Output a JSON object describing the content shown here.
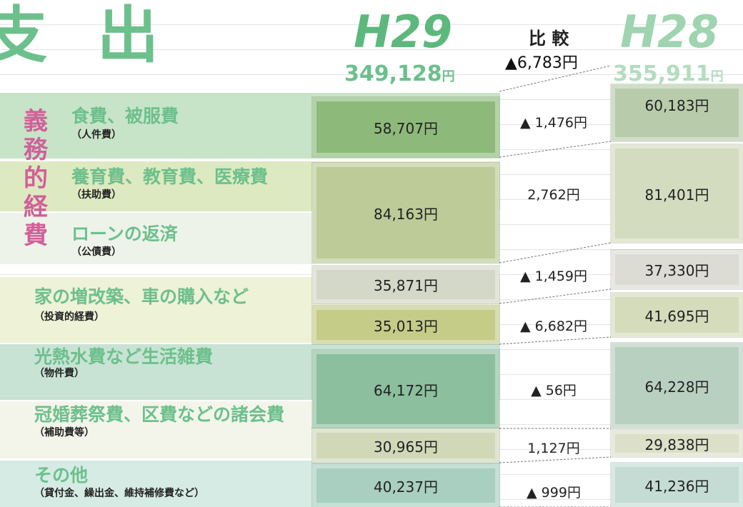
{
  "title": "支出",
  "current": {
    "label": "H29",
    "total": "349,128"
  },
  "previous": {
    "label": "H28",
    "total": "355,911"
  },
  "unit": "円",
  "compare_label": "比 較",
  "total_diff": "▲6,783円",
  "group_label": "義務的経費",
  "categories": [
    {
      "name": "食費、被服費",
      "sub": "（人件費）"
    },
    {
      "name": "養育費、教育費、医療費",
      "sub": "（扶助費）"
    },
    {
      "name": "ローンの返済",
      "sub": "（公債費）"
    },
    {
      "name": "家の増改築、車の購入など",
      "sub": "（投資的経費）"
    },
    {
      "name": "光熱水費など生活雑費",
      "sub": "（物件費）"
    },
    {
      "name": "冠婚葬祭費、区費などの諸会費",
      "sub": "（補助費等）"
    },
    {
      "name": "その他",
      "sub": "（貸付金、繰出金、維持補修費など）"
    }
  ],
  "rows": [
    {
      "h29": "58,707円",
      "diff": "▲ 1,476円",
      "h28": "60,183円"
    },
    {
      "h29": "84,163円",
      "diff": "2,762円",
      "h28": "81,401円"
    },
    {
      "h29": "35,871円",
      "diff": "▲ 1,459円",
      "h28": "37,330円"
    },
    {
      "h29": "35,013円",
      "diff": "▲ 6,682円",
      "h28": "41,695円"
    },
    {
      "h29": "64,172円",
      "diff": "▲ 56円",
      "h28": "64,228円"
    },
    {
      "h29": "30,965円",
      "diff": "1,127円",
      "h28": "29,838円"
    },
    {
      "h29": "40,237円",
      "diff": "▲ 999円",
      "h28": "41,236円"
    }
  ]
}
